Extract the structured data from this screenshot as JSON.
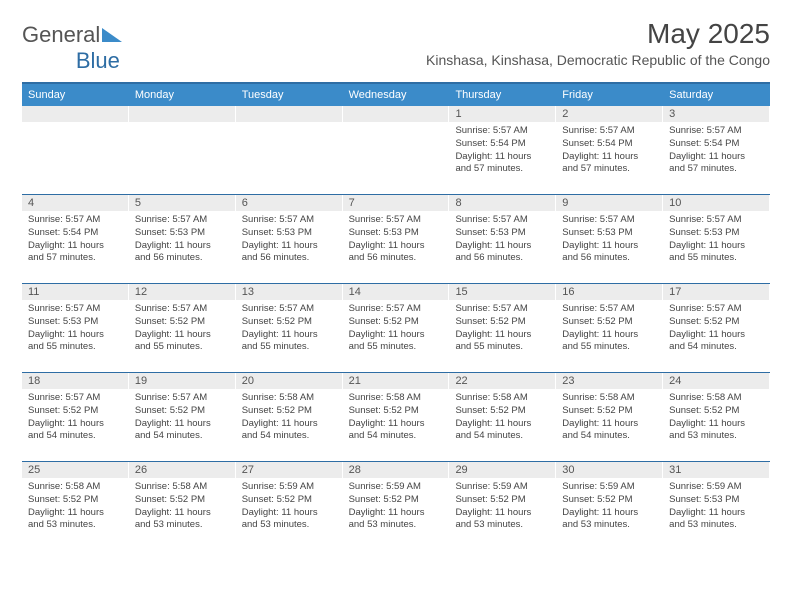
{
  "brand": {
    "name_a": "General",
    "name_b": "Blue",
    "accent": "#3b8bc9"
  },
  "title": "May 2025",
  "location": "Kinshasa, Kinshasa, Democratic Republic of the Congo",
  "colors": {
    "header_bg": "#3b8bc9",
    "week_border": "#2e6da4",
    "daynum_bg": "#ececec",
    "text": "#444444",
    "page_bg": "#ffffff"
  },
  "weekdays": [
    "Sunday",
    "Monday",
    "Tuesday",
    "Wednesday",
    "Thursday",
    "Friday",
    "Saturday"
  ],
  "weeks": [
    [
      {
        "n": "",
        "lines": [
          "",
          "",
          "",
          ""
        ]
      },
      {
        "n": "",
        "lines": [
          "",
          "",
          "",
          ""
        ]
      },
      {
        "n": "",
        "lines": [
          "",
          "",
          "",
          ""
        ]
      },
      {
        "n": "",
        "lines": [
          "",
          "",
          "",
          ""
        ]
      },
      {
        "n": "1",
        "lines": [
          "Sunrise: 5:57 AM",
          "Sunset: 5:54 PM",
          "Daylight: 11 hours",
          "and 57 minutes."
        ]
      },
      {
        "n": "2",
        "lines": [
          "Sunrise: 5:57 AM",
          "Sunset: 5:54 PM",
          "Daylight: 11 hours",
          "and 57 minutes."
        ]
      },
      {
        "n": "3",
        "lines": [
          "Sunrise: 5:57 AM",
          "Sunset: 5:54 PM",
          "Daylight: 11 hours",
          "and 57 minutes."
        ]
      }
    ],
    [
      {
        "n": "4",
        "lines": [
          "Sunrise: 5:57 AM",
          "Sunset: 5:54 PM",
          "Daylight: 11 hours",
          "and 57 minutes."
        ]
      },
      {
        "n": "5",
        "lines": [
          "Sunrise: 5:57 AM",
          "Sunset: 5:53 PM",
          "Daylight: 11 hours",
          "and 56 minutes."
        ]
      },
      {
        "n": "6",
        "lines": [
          "Sunrise: 5:57 AM",
          "Sunset: 5:53 PM",
          "Daylight: 11 hours",
          "and 56 minutes."
        ]
      },
      {
        "n": "7",
        "lines": [
          "Sunrise: 5:57 AM",
          "Sunset: 5:53 PM",
          "Daylight: 11 hours",
          "and 56 minutes."
        ]
      },
      {
        "n": "8",
        "lines": [
          "Sunrise: 5:57 AM",
          "Sunset: 5:53 PM",
          "Daylight: 11 hours",
          "and 56 minutes."
        ]
      },
      {
        "n": "9",
        "lines": [
          "Sunrise: 5:57 AM",
          "Sunset: 5:53 PM",
          "Daylight: 11 hours",
          "and 56 minutes."
        ]
      },
      {
        "n": "10",
        "lines": [
          "Sunrise: 5:57 AM",
          "Sunset: 5:53 PM",
          "Daylight: 11 hours",
          "and 55 minutes."
        ]
      }
    ],
    [
      {
        "n": "11",
        "lines": [
          "Sunrise: 5:57 AM",
          "Sunset: 5:53 PM",
          "Daylight: 11 hours",
          "and 55 minutes."
        ]
      },
      {
        "n": "12",
        "lines": [
          "Sunrise: 5:57 AM",
          "Sunset: 5:52 PM",
          "Daylight: 11 hours",
          "and 55 minutes."
        ]
      },
      {
        "n": "13",
        "lines": [
          "Sunrise: 5:57 AM",
          "Sunset: 5:52 PM",
          "Daylight: 11 hours",
          "and 55 minutes."
        ]
      },
      {
        "n": "14",
        "lines": [
          "Sunrise: 5:57 AM",
          "Sunset: 5:52 PM",
          "Daylight: 11 hours",
          "and 55 minutes."
        ]
      },
      {
        "n": "15",
        "lines": [
          "Sunrise: 5:57 AM",
          "Sunset: 5:52 PM",
          "Daylight: 11 hours",
          "and 55 minutes."
        ]
      },
      {
        "n": "16",
        "lines": [
          "Sunrise: 5:57 AM",
          "Sunset: 5:52 PM",
          "Daylight: 11 hours",
          "and 55 minutes."
        ]
      },
      {
        "n": "17",
        "lines": [
          "Sunrise: 5:57 AM",
          "Sunset: 5:52 PM",
          "Daylight: 11 hours",
          "and 54 minutes."
        ]
      }
    ],
    [
      {
        "n": "18",
        "lines": [
          "Sunrise: 5:57 AM",
          "Sunset: 5:52 PM",
          "Daylight: 11 hours",
          "and 54 minutes."
        ]
      },
      {
        "n": "19",
        "lines": [
          "Sunrise: 5:57 AM",
          "Sunset: 5:52 PM",
          "Daylight: 11 hours",
          "and 54 minutes."
        ]
      },
      {
        "n": "20",
        "lines": [
          "Sunrise: 5:58 AM",
          "Sunset: 5:52 PM",
          "Daylight: 11 hours",
          "and 54 minutes."
        ]
      },
      {
        "n": "21",
        "lines": [
          "Sunrise: 5:58 AM",
          "Sunset: 5:52 PM",
          "Daylight: 11 hours",
          "and 54 minutes."
        ]
      },
      {
        "n": "22",
        "lines": [
          "Sunrise: 5:58 AM",
          "Sunset: 5:52 PM",
          "Daylight: 11 hours",
          "and 54 minutes."
        ]
      },
      {
        "n": "23",
        "lines": [
          "Sunrise: 5:58 AM",
          "Sunset: 5:52 PM",
          "Daylight: 11 hours",
          "and 54 minutes."
        ]
      },
      {
        "n": "24",
        "lines": [
          "Sunrise: 5:58 AM",
          "Sunset: 5:52 PM",
          "Daylight: 11 hours",
          "and 53 minutes."
        ]
      }
    ],
    [
      {
        "n": "25",
        "lines": [
          "Sunrise: 5:58 AM",
          "Sunset: 5:52 PM",
          "Daylight: 11 hours",
          "and 53 minutes."
        ]
      },
      {
        "n": "26",
        "lines": [
          "Sunrise: 5:58 AM",
          "Sunset: 5:52 PM",
          "Daylight: 11 hours",
          "and 53 minutes."
        ]
      },
      {
        "n": "27",
        "lines": [
          "Sunrise: 5:59 AM",
          "Sunset: 5:52 PM",
          "Daylight: 11 hours",
          "and 53 minutes."
        ]
      },
      {
        "n": "28",
        "lines": [
          "Sunrise: 5:59 AM",
          "Sunset: 5:52 PM",
          "Daylight: 11 hours",
          "and 53 minutes."
        ]
      },
      {
        "n": "29",
        "lines": [
          "Sunrise: 5:59 AM",
          "Sunset: 5:52 PM",
          "Daylight: 11 hours",
          "and 53 minutes."
        ]
      },
      {
        "n": "30",
        "lines": [
          "Sunrise: 5:59 AM",
          "Sunset: 5:52 PM",
          "Daylight: 11 hours",
          "and 53 minutes."
        ]
      },
      {
        "n": "31",
        "lines": [
          "Sunrise: 5:59 AM",
          "Sunset: 5:53 PM",
          "Daylight: 11 hours",
          "and 53 minutes."
        ]
      }
    ]
  ]
}
